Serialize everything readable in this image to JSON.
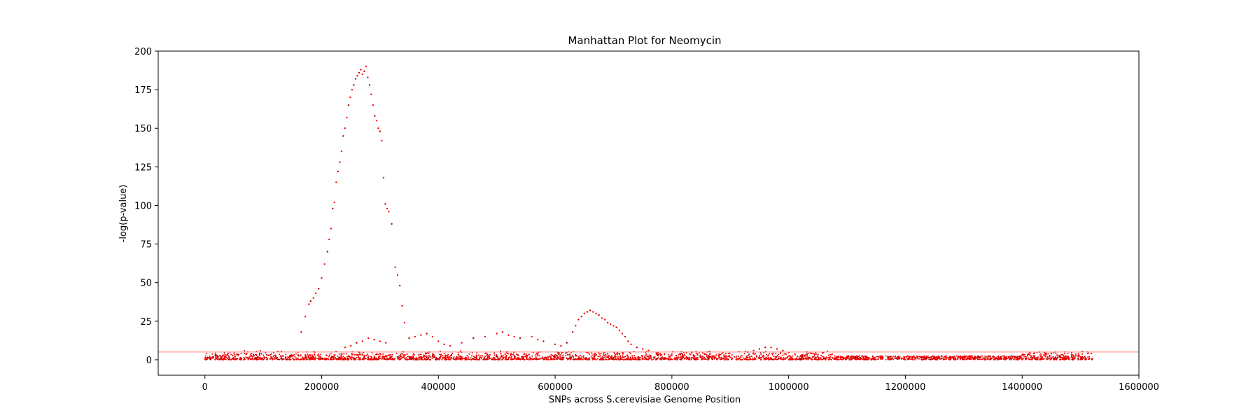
{
  "chart_data": {
    "type": "scatter",
    "title": "Manhattan Plot for Neomycin",
    "xlabel": "SNPs across S.cerevisiae Genome Position",
    "ylabel": "-log(p-value)",
    "xlim": [
      -80000,
      1600000
    ],
    "ylim": [
      -10,
      200
    ],
    "xticks": [
      0,
      200000,
      400000,
      600000,
      800000,
      1000000,
      1200000,
      1400000,
      1600000
    ],
    "xtick_labels": [
      "0",
      "200000",
      "400000",
      "600000",
      "800000",
      "1000000",
      "1200000",
      "1400000",
      "1600000"
    ],
    "yticks": [
      0,
      25,
      50,
      75,
      100,
      125,
      150,
      175,
      200
    ],
    "ytick_labels": [
      "0",
      "25",
      "50",
      "75",
      "100",
      "125",
      "150",
      "175",
      "200"
    ],
    "grid": false,
    "threshold": 5,
    "colors": {
      "points": "#ff0000",
      "points_dark": "#b30000",
      "threshold_line": "#ff8080"
    },
    "series": [
      {
        "values": [
          [
            165000,
            18
          ],
          [
            172000,
            28
          ],
          [
            178000,
            36
          ],
          [
            181000,
            38
          ],
          [
            186000,
            40
          ],
          [
            190000,
            43
          ],
          [
            195000,
            46
          ],
          [
            200000,
            53
          ],
          [
            205000,
            62
          ],
          [
            210000,
            70
          ],
          [
            213000,
            78
          ],
          [
            216000,
            85
          ],
          [
            219000,
            98
          ],
          [
            222000,
            102
          ],
          [
            225000,
            115
          ],
          [
            228000,
            122
          ],
          [
            231000,
            128
          ],
          [
            234000,
            135
          ],
          [
            237000,
            145
          ],
          [
            240000,
            150
          ],
          [
            243000,
            157
          ],
          [
            246000,
            165
          ],
          [
            249000,
            170
          ],
          [
            252000,
            175
          ],
          [
            255000,
            178
          ],
          [
            258000,
            182
          ],
          [
            261000,
            184
          ],
          [
            264000,
            186
          ],
          [
            267000,
            188
          ],
          [
            270000,
            185
          ],
          [
            273000,
            187
          ],
          [
            276000,
            190
          ],
          [
            279000,
            183
          ],
          [
            282000,
            178
          ],
          [
            285000,
            172
          ],
          [
            288000,
            165
          ],
          [
            291000,
            158
          ],
          [
            294000,
            155
          ],
          [
            297000,
            150
          ],
          [
            300000,
            148
          ],
          [
            303000,
            142
          ],
          [
            306000,
            118
          ],
          [
            309000,
            101
          ],
          [
            312000,
            98
          ],
          [
            315000,
            96
          ],
          [
            320000,
            88
          ],
          [
            326000,
            60
          ],
          [
            330000,
            55
          ],
          [
            334000,
            48
          ],
          [
            338000,
            35
          ],
          [
            342000,
            24
          ],
          [
            630000,
            18
          ],
          [
            635000,
            22
          ],
          [
            640000,
            26
          ],
          [
            645000,
            28
          ],
          [
            650000,
            30
          ],
          [
            655000,
            31
          ],
          [
            660000,
            32
          ],
          [
            665000,
            31
          ],
          [
            670000,
            30
          ],
          [
            675000,
            29
          ],
          [
            680000,
            27
          ],
          [
            685000,
            26
          ],
          [
            690000,
            24
          ],
          [
            695000,
            23
          ],
          [
            700000,
            22
          ],
          [
            705000,
            21
          ],
          [
            710000,
            19
          ],
          [
            715000,
            17
          ],
          [
            720000,
            15
          ],
          [
            725000,
            12
          ],
          [
            730000,
            10
          ],
          [
            740000,
            8
          ],
          [
            750000,
            7
          ],
          [
            760000,
            6
          ],
          [
            350000,
            14
          ],
          [
            360000,
            15
          ],
          [
            370000,
            16
          ],
          [
            380000,
            17
          ],
          [
            390000,
            15
          ],
          [
            400000,
            12
          ],
          [
            410000,
            10
          ],
          [
            420000,
            9
          ],
          [
            440000,
            11
          ],
          [
            460000,
            14
          ],
          [
            480000,
            15
          ],
          [
            500000,
            17
          ],
          [
            510000,
            18
          ],
          [
            520000,
            16
          ],
          [
            530000,
            15
          ],
          [
            540000,
            14
          ],
          [
            560000,
            15
          ],
          [
            570000,
            13
          ],
          [
            580000,
            12
          ],
          [
            600000,
            10
          ],
          [
            610000,
            9
          ],
          [
            620000,
            11
          ],
          [
            240000,
            8
          ],
          [
            250000,
            9
          ],
          [
            260000,
            11
          ],
          [
            270000,
            12
          ],
          [
            280000,
            14
          ],
          [
            290000,
            13
          ],
          [
            300000,
            12
          ],
          [
            310000,
            11
          ],
          [
            930000,
            5
          ],
          [
            940000,
            6
          ],
          [
            950000,
            7
          ],
          [
            960000,
            8
          ],
          [
            970000,
            8
          ],
          [
            980000,
            7
          ],
          [
            990000,
            6
          ],
          [
            1300000,
            2
          ],
          [
            1350000,
            2
          ],
          [
            1400000,
            3
          ],
          [
            1420000,
            4
          ],
          [
            1430000,
            5
          ],
          [
            1440000,
            4
          ],
          [
            1450000,
            4
          ],
          [
            1460000,
            3
          ],
          [
            1470000,
            1
          ],
          [
            1490000,
            1
          ],
          [
            1510000,
            0.5
          ],
          [
            1520000,
            0.5
          ]
        ]
      }
    ]
  }
}
